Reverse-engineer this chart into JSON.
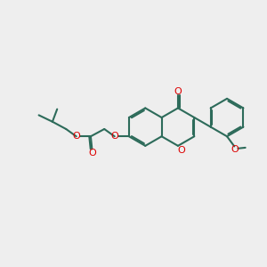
{
  "background_color": "#eeeeee",
  "bond_color": "#2d6b5a",
  "oxygen_color": "#dd0000",
  "lw": 1.5,
  "dbo": 0.055,
  "figsize": [
    3.0,
    3.0
  ],
  "dpi": 100,
  "xlim": [
    0,
    10
  ],
  "ylim": [
    0,
    10
  ]
}
